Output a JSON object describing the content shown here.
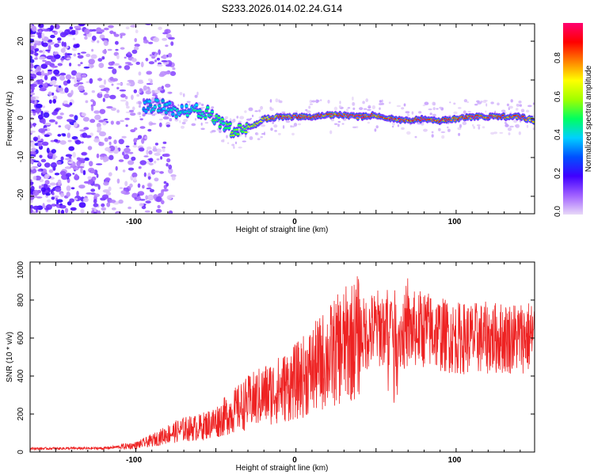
{
  "title": "S233.2026.014.02.24.G14",
  "chart_data": [
    {
      "type": "heatmap",
      "title": "S233.2026.014.02.24.G14",
      "xlabel": "Height of straight line (km)",
      "ylabel": "Frequency (Hz)",
      "xlim": [
        -166,
        149
      ],
      "ylim": [
        -24.5,
        24.5
      ],
      "x_ticks": [
        "-100",
        "0",
        "100"
      ],
      "y_ticks": [
        "20",
        "10",
        "0",
        "-10",
        "-20"
      ],
      "colorbar": {
        "label": "Normalized spectral amplitude",
        "ticks": [
          "0.8",
          "0.6",
          "0.4",
          "0.2",
          "0.0"
        ],
        "range": [
          0,
          1
        ],
        "colormap": [
          "#e8d8f8",
          "#a060ff",
          "#4000ff",
          "#0050ff",
          "#00d0ff",
          "#00ff60",
          "#a0ff00",
          "#ffff00",
          "#ff8000",
          "#ff0000",
          "#ff0070"
        ]
      },
      "ridge": {
        "x": [
          -95,
          -85,
          -75,
          -65,
          -55,
          -50,
          -45,
          -40,
          -35,
          -30,
          -25,
          -20,
          -10,
          0,
          10,
          20,
          30,
          40,
          50,
          60,
          70,
          80,
          90,
          100,
          110,
          120,
          130,
          140,
          149
        ],
        "freq_hz": [
          3,
          3.5,
          2,
          2.5,
          1.5,
          0,
          -2,
          -3,
          -3,
          -2,
          -1.5,
          0,
          0.5,
          0.5,
          0.5,
          1,
          1,
          0.5,
          1,
          0,
          -0.5,
          0,
          -0.5,
          0,
          0.5,
          0.5,
          0.5,
          0.5,
          -0.5
        ],
        "amplitude": [
          0.35,
          0.35,
          0.4,
          0.4,
          0.45,
          0.5,
          0.5,
          0.55,
          0.6,
          0.65,
          0.7,
          0.8,
          0.85,
          0.9,
          0.9,
          0.85,
          0.9,
          0.9,
          0.85,
          0.9,
          0.85,
          0.9,
          0.9,
          0.9,
          0.9,
          0.9,
          0.85,
          0.9,
          0.8
        ]
      }
    },
    {
      "type": "line",
      "xlabel": "Height of straight line (km)",
      "ylabel": "SNR (10 * v/v)",
      "xlim": [
        -166,
        149
      ],
      "ylim": [
        0,
        1000
      ],
      "x_ticks": [
        "-100",
        "0",
        "100"
      ],
      "y_ticks": [
        "1000",
        "800",
        "600",
        "400",
        "200",
        "0"
      ],
      "color": "#ee2222",
      "envelope": {
        "x": [
          -166,
          -120,
          -100,
          -90,
          -80,
          -70,
          -60,
          -50,
          -40,
          -30,
          -20,
          -10,
          0,
          10,
          20,
          30,
          40,
          50,
          60,
          65,
          70,
          80,
          90,
          100,
          110,
          120,
          130,
          140,
          149
        ],
        "y": [
          18,
          20,
          35,
          60,
          95,
          120,
          130,
          160,
          210,
          260,
          300,
          330,
          370,
          430,
          500,
          560,
          610,
          650,
          660,
          620,
          640,
          650,
          620,
          600,
          600,
          600,
          600,
          605,
          610
        ]
      }
    }
  ]
}
